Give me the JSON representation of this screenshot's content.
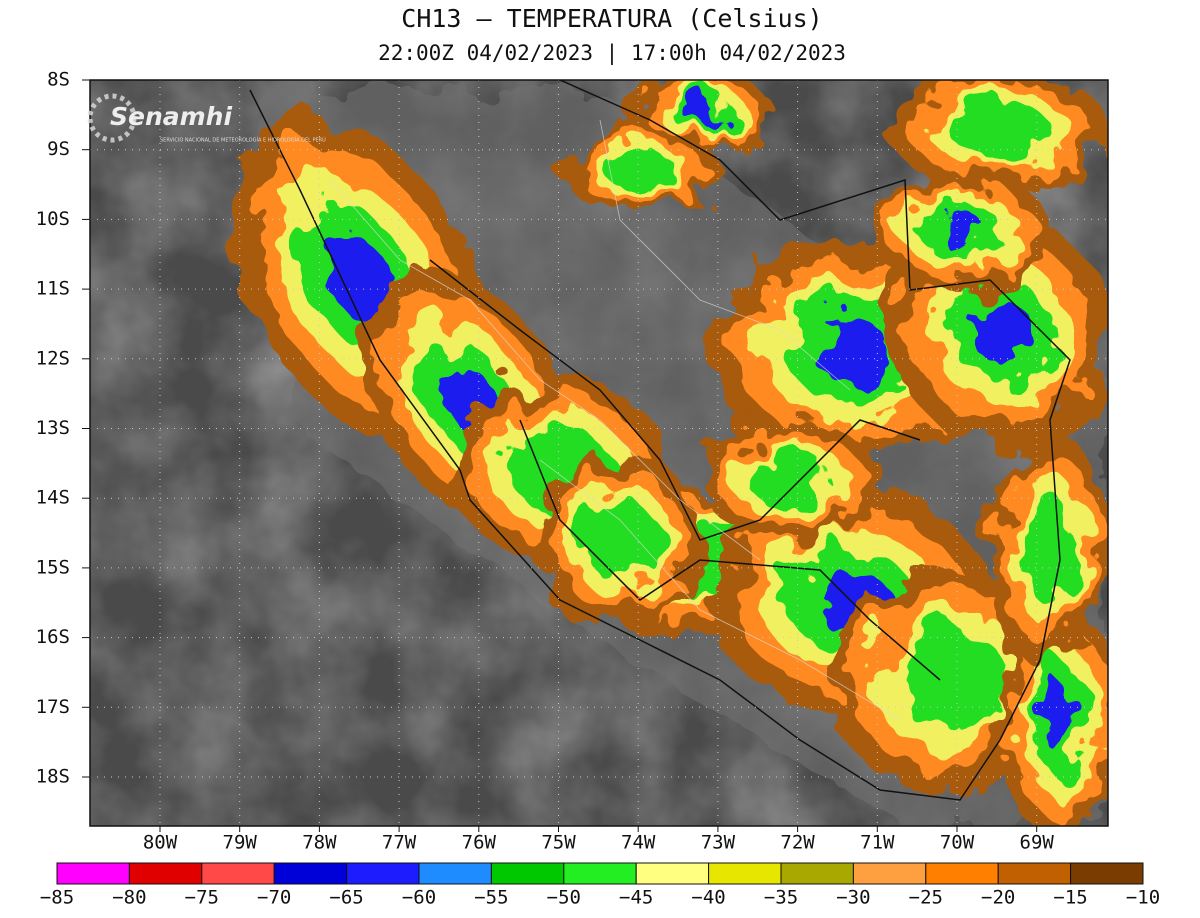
{
  "map": {
    "title": "CH13 – TEMPERATURA (Celsius)",
    "subtitle": "22:00Z 04/02/2023 | 17:00h 04/02/2023",
    "logo": {
      "name": "Senamhi",
      "tagline": "SERVICIO NACIONAL DE METEOROLOGÍA E HIDROLOGÍA DEL PERÚ"
    },
    "lat_labels": [
      "8S",
      "9S",
      "10S",
      "11S",
      "12S",
      "13S",
      "14S",
      "15S",
      "16S",
      "17S",
      "18S"
    ],
    "lon_labels": [
      "80W",
      "79W",
      "78W",
      "77W",
      "76W",
      "75W",
      "74W",
      "73W",
      "72W",
      "71W",
      "70W",
      "69W"
    ],
    "colorbar": {
      "ticks": [
        {
          "value": -85,
          "label": "−85"
        },
        {
          "value": -80,
          "label": "−80"
        },
        {
          "value": -75,
          "label": "−75"
        },
        {
          "value": -70,
          "label": "−70"
        },
        {
          "value": -65,
          "label": "−65"
        },
        {
          "value": -60,
          "label": "−60"
        },
        {
          "value": -55,
          "label": "−55"
        },
        {
          "value": -50,
          "label": "−50"
        },
        {
          "value": -45,
          "label": "−45"
        },
        {
          "value": -40,
          "label": "−40"
        },
        {
          "value": -35,
          "label": "−35"
        },
        {
          "value": -30,
          "label": "−30"
        },
        {
          "value": -25,
          "label": "−25"
        },
        {
          "value": -20,
          "label": "−20"
        },
        {
          "value": -15,
          "label": "−15"
        },
        {
          "value": -10,
          "label": "−10"
        }
      ],
      "colors": [
        "#ff00ff",
        "#e00000",
        "#ff4848",
        "#0000d8",
        "#1c1cff",
        "#1e8cff",
        "#00c800",
        "#22ee22",
        "#ffff80",
        "#e6e600",
        "#a8a800",
        "#ffa040",
        "#ff8000",
        "#c06000",
        "#7a3c00"
      ]
    }
  }
}
